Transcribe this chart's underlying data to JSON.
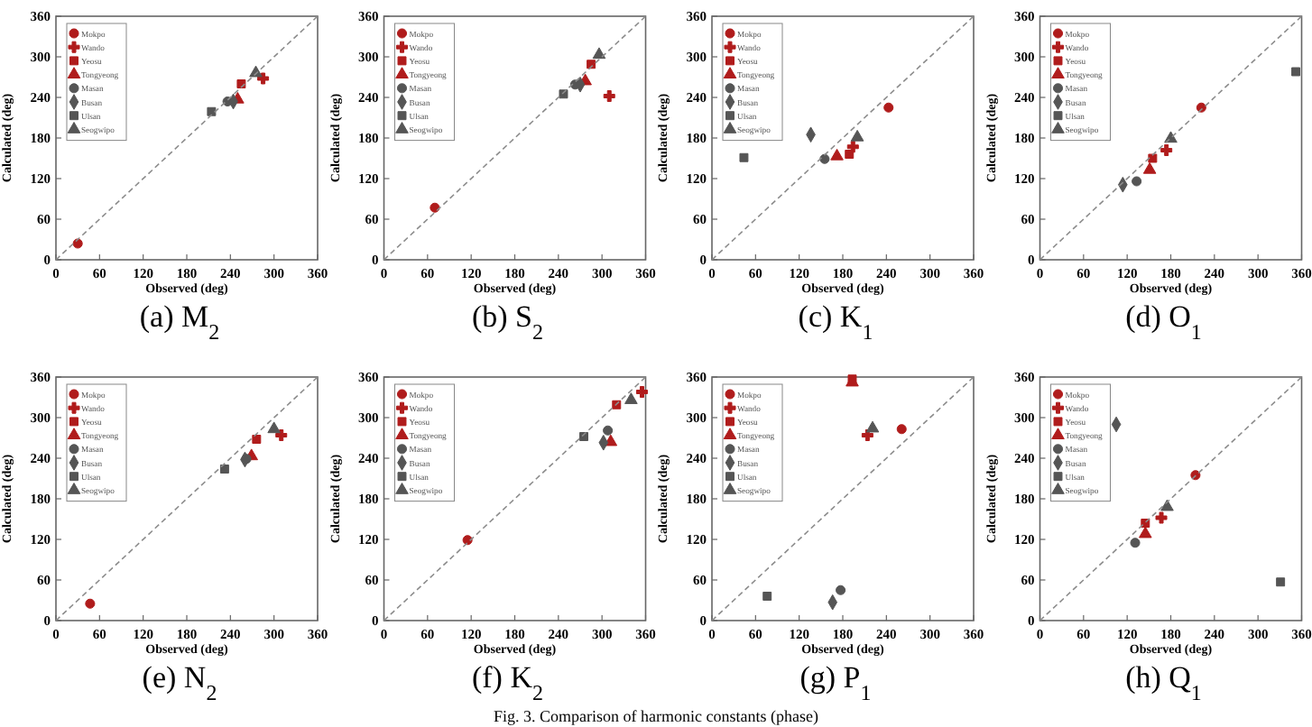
{
  "chart_data": [
    {
      "type": "scatter",
      "title": "(a) M$_{2}$",
      "xlabel": "Observed (deg)",
      "ylabel": "Calculated (deg)",
      "xlim": [
        0,
        360
      ],
      "ylim": [
        0,
        360
      ],
      "xticks": [
        0,
        60,
        120,
        180,
        240,
        300,
        360
      ],
      "yticks": [
        0,
        60,
        120,
        180,
        240,
        300,
        360
      ],
      "legend": "top left",
      "grid": false,
      "series": [
        {
          "name": "Mokpo",
          "color": "#b01c1c",
          "marker": "circle",
          "x": [
            30
          ],
          "values": [
            24
          ]
        },
        {
          "name": "Wando",
          "color": "#b01c1c",
          "marker": "cross",
          "x": [
            285
          ],
          "values": [
            268
          ]
        },
        {
          "name": "Yeosu",
          "color": "#b01c1c",
          "marker": "square",
          "x": [
            255
          ],
          "values": [
            260
          ]
        },
        {
          "name": "Tongyeong",
          "color": "#b01c1c",
          "marker": "triangle",
          "x": [
            250
          ],
          "values": [
            237
          ]
        },
        {
          "name": "Masan",
          "color": "#555555",
          "marker": "circle",
          "x": [
            236
          ],
          "values": [
            234
          ]
        },
        {
          "name": "Busan",
          "color": "#555555",
          "marker": "diamond",
          "x": [
            244
          ],
          "values": [
            234
          ]
        },
        {
          "name": "Ulsan",
          "color": "#555555",
          "marker": "square",
          "x": [
            214
          ],
          "values": [
            219
          ]
        },
        {
          "name": "Seogwipo",
          "color": "#555555",
          "marker": "triangle",
          "x": [
            275
          ],
          "values": [
            276
          ]
        },
        {
          "type": "line",
          "color": "#8c8c8c",
          "line_style": "dashed",
          "marker": "none",
          "x": [
            0,
            360
          ],
          "values": [
            0,
            360
          ]
        }
      ]
    },
    {
      "type": "scatter",
      "title": "(b) S$_{2}$",
      "xlabel": "Observed (deg)",
      "ylabel": "Calculated (deg)",
      "xlim": [
        0,
        360
      ],
      "ylim": [
        0,
        360
      ],
      "xticks": [
        0,
        60,
        120,
        180,
        240,
        300,
        360
      ],
      "yticks": [
        0,
        60,
        120,
        180,
        240,
        300,
        360
      ],
      "legend": "top left",
      "grid": false,
      "series": [
        {
          "name": "Mokpo",
          "color": "#b01c1c",
          "marker": "circle",
          "x": [
            70
          ],
          "values": [
            77
          ]
        },
        {
          "name": "Wando",
          "color": "#b01c1c",
          "marker": "cross",
          "x": [
            310
          ],
          "values": [
            242
          ]
        },
        {
          "name": "Yeosu",
          "color": "#b01c1c",
          "marker": "square",
          "x": [
            285
          ],
          "values": [
            289
          ]
        },
        {
          "name": "Tongyeong",
          "color": "#b01c1c",
          "marker": "triangle",
          "x": [
            277
          ],
          "values": [
            264
          ]
        },
        {
          "name": "Masan",
          "color": "#555555",
          "marker": "circle",
          "x": [
            263
          ],
          "values": [
            259
          ]
        },
        {
          "name": "Busan",
          "color": "#555555",
          "marker": "diamond",
          "x": [
            270
          ],
          "values": [
            259
          ]
        },
        {
          "name": "Ulsan",
          "color": "#555555",
          "marker": "square",
          "x": [
            247
          ],
          "values": [
            245
          ]
        },
        {
          "name": "Seogwipo",
          "color": "#555555",
          "marker": "triangle",
          "x": [
            296
          ],
          "values": [
            303
          ]
        },
        {
          "type": "line",
          "color": "#8c8c8c",
          "line_style": "dashed",
          "marker": "none",
          "x": [
            0,
            360
          ],
          "values": [
            0,
            360
          ]
        }
      ]
    },
    {
      "type": "scatter",
      "title": "(c) K$_{1}$",
      "xlabel": "Observed (deg)",
      "ylabel": "Calculated (deg)",
      "xlim": [
        0,
        360
      ],
      "ylim": [
        0,
        360
      ],
      "xticks": [
        0,
        60,
        120,
        180,
        240,
        300,
        360
      ],
      "yticks": [
        0,
        60,
        120,
        180,
        240,
        300,
        360
      ],
      "legend": "top left",
      "grid": false,
      "series": [
        {
          "name": "Mokpo",
          "color": "#b01c1c",
          "marker": "circle",
          "x": [
            243
          ],
          "values": [
            225
          ]
        },
        {
          "name": "Wando",
          "color": "#b01c1c",
          "marker": "cross",
          "x": [
            194
          ],
          "values": [
            167
          ]
        },
        {
          "name": "Yeosu",
          "color": "#b01c1c",
          "marker": "square",
          "x": [
            189
          ],
          "values": [
            156
          ]
        },
        {
          "name": "Tongyeong",
          "color": "#b01c1c",
          "marker": "triangle",
          "x": [
            172
          ],
          "values": [
            153
          ]
        },
        {
          "name": "Masan",
          "color": "#555555",
          "marker": "circle",
          "x": [
            155
          ],
          "values": [
            149
          ]
        },
        {
          "name": "Busan",
          "color": "#555555",
          "marker": "diamond",
          "x": [
            136
          ],
          "values": [
            185
          ]
        },
        {
          "name": "Ulsan",
          "color": "#555555",
          "marker": "square",
          "x": [
            44
          ],
          "values": [
            151
          ]
        },
        {
          "name": "Seogwipo",
          "color": "#555555",
          "marker": "triangle",
          "x": [
            200
          ],
          "values": [
            181
          ]
        },
        {
          "type": "line",
          "color": "#8c8c8c",
          "line_style": "dashed",
          "marker": "none",
          "x": [
            0,
            360
          ],
          "values": [
            0,
            360
          ]
        }
      ]
    },
    {
      "type": "scatter",
      "title": "(d) O$_{1}$",
      "xlabel": "Observed (deg)",
      "ylabel": "Calculated (deg)",
      "xlim": [
        0,
        360
      ],
      "ylim": [
        0,
        360
      ],
      "xticks": [
        0,
        60,
        120,
        180,
        240,
        300,
        360
      ],
      "yticks": [
        0,
        60,
        120,
        180,
        240,
        300,
        360
      ],
      "legend": "top left",
      "grid": false,
      "series": [
        {
          "name": "Mokpo",
          "color": "#b01c1c",
          "marker": "circle",
          "x": [
            222
          ],
          "values": [
            225
          ]
        },
        {
          "name": "Wando",
          "color": "#b01c1c",
          "marker": "cross",
          "x": [
            174
          ],
          "values": [
            162
          ]
        },
        {
          "name": "Yeosu",
          "color": "#b01c1c",
          "marker": "square",
          "x": [
            155
          ],
          "values": [
            150
          ]
        },
        {
          "name": "Tongyeong",
          "color": "#b01c1c",
          "marker": "triangle",
          "x": [
            151
          ],
          "values": [
            133
          ]
        },
        {
          "name": "Masan",
          "color": "#555555",
          "marker": "circle",
          "x": [
            133
          ],
          "values": [
            116
          ]
        },
        {
          "name": "Busan",
          "color": "#555555",
          "marker": "diamond",
          "x": [
            114
          ],
          "values": [
            111
          ]
        },
        {
          "name": "Ulsan",
          "color": "#555555",
          "marker": "square",
          "x": [
            352
          ],
          "values": [
            278
          ]
        },
        {
          "name": "Seogwipo",
          "color": "#555555",
          "marker": "triangle",
          "x": [
            180
          ],
          "values": [
            179
          ]
        },
        {
          "type": "line",
          "color": "#8c8c8c",
          "line_style": "dashed",
          "marker": "none",
          "x": [
            0,
            360
          ],
          "values": [
            0,
            360
          ]
        }
      ]
    },
    {
      "type": "scatter",
      "title": "(e) N$_{2}$",
      "xlabel": "Observed (deg)",
      "ylabel": "Calculated (deg)",
      "xlim": [
        0,
        360
      ],
      "ylim": [
        0,
        360
      ],
      "xticks": [
        0,
        60,
        120,
        180,
        240,
        300,
        360
      ],
      "yticks": [
        0,
        60,
        120,
        180,
        240,
        300,
        360
      ],
      "legend": "top left",
      "grid": false,
      "series": [
        {
          "name": "Mokpo",
          "color": "#b01c1c",
          "marker": "circle",
          "x": [
            47
          ],
          "values": [
            25
          ]
        },
        {
          "name": "Wando",
          "color": "#b01c1c",
          "marker": "cross",
          "x": [
            310
          ],
          "values": [
            274
          ]
        },
        {
          "name": "Yeosu",
          "color": "#b01c1c",
          "marker": "square",
          "x": [
            276
          ],
          "values": [
            268
          ]
        },
        {
          "name": "Tongyeong",
          "color": "#b01c1c",
          "marker": "triangle",
          "x": [
            269
          ],
          "values": [
            243
          ]
        },
        {
          "name": "Masan",
          "color": "#555555",
          "marker": "circle",
          "x": [
            262
          ],
          "values": [
            239
          ]
        },
        {
          "name": "Busan",
          "color": "#555555",
          "marker": "diamond",
          "x": [
            260
          ],
          "values": [
            238
          ]
        },
        {
          "name": "Ulsan",
          "color": "#555555",
          "marker": "square",
          "x": [
            232
          ],
          "values": [
            224
          ]
        },
        {
          "name": "Seogwipo",
          "color": "#555555",
          "marker": "triangle",
          "x": [
            300
          ],
          "values": [
            283
          ]
        },
        {
          "type": "line",
          "color": "#8c8c8c",
          "line_style": "dashed",
          "marker": "none",
          "x": [
            0,
            360
          ],
          "values": [
            0,
            360
          ]
        }
      ]
    },
    {
      "type": "scatter",
      "title": "(f) K$_{2}$",
      "xlabel": "Observed (deg)",
      "ylabel": "Calculated (deg)",
      "xlim": [
        0,
        360
      ],
      "ylim": [
        0,
        360
      ],
      "xticks": [
        0,
        60,
        120,
        180,
        240,
        300,
        360
      ],
      "yticks": [
        0,
        60,
        120,
        180,
        240,
        300,
        360
      ],
      "legend": "top left",
      "grid": false,
      "series": [
        {
          "name": "Mokpo",
          "color": "#b01c1c",
          "marker": "circle",
          "x": [
            115
          ],
          "values": [
            119
          ]
        },
        {
          "name": "Wando",
          "color": "#b01c1c",
          "marker": "cross",
          "x": [
            355
          ],
          "values": [
            338
          ]
        },
        {
          "name": "Yeosu",
          "color": "#b01c1c",
          "marker": "square",
          "x": [
            320
          ],
          "values": [
            319
          ]
        },
        {
          "name": "Tongyeong",
          "color": "#b01c1c",
          "marker": "triangle",
          "x": [
            312
          ],
          "values": [
            264
          ]
        },
        {
          "name": "Masan",
          "color": "#555555",
          "marker": "circle",
          "x": [
            308
          ],
          "values": [
            281
          ]
        },
        {
          "name": "Busan",
          "color": "#555555",
          "marker": "diamond",
          "x": [
            302
          ],
          "values": [
            263
          ]
        },
        {
          "name": "Ulsan",
          "color": "#555555",
          "marker": "square",
          "x": [
            275
          ],
          "values": [
            272
          ]
        },
        {
          "name": "Seogwipo",
          "color": "#555555",
          "marker": "triangle",
          "x": [
            340
          ],
          "values": [
            326
          ]
        },
        {
          "type": "line",
          "color": "#8c8c8c",
          "line_style": "dashed",
          "marker": "none",
          "x": [
            0,
            360
          ],
          "values": [
            0,
            360
          ]
        }
      ]
    },
    {
      "type": "scatter",
      "title": "(g) P$_{1}$",
      "xlabel": "Observed (deg)",
      "ylabel": "Calculated (deg)",
      "xlim": [
        0,
        360
      ],
      "ylim": [
        0,
        360
      ],
      "xticks": [
        0,
        60,
        120,
        180,
        240,
        300,
        360
      ],
      "yticks": [
        0,
        60,
        120,
        180,
        240,
        300,
        360
      ],
      "legend": "top left",
      "grid": false,
      "series": [
        {
          "name": "Mokpo",
          "color": "#b01c1c",
          "marker": "circle",
          "x": [
            261
          ],
          "values": [
            283
          ]
        },
        {
          "name": "Wando",
          "color": "#b01c1c",
          "marker": "cross",
          "x": [
            214
          ],
          "values": [
            274
          ]
        },
        {
          "name": "Yeosu",
          "color": "#b01c1c",
          "marker": "square",
          "x": [
            193
          ],
          "values": [
            357
          ]
        },
        {
          "name": "Tongyeong",
          "color": "#b01c1c",
          "marker": "triangle",
          "x": [
            193
          ],
          "values": [
            352
          ]
        },
        {
          "name": "Masan",
          "color": "#555555",
          "marker": "circle",
          "x": [
            177
          ],
          "values": [
            45
          ]
        },
        {
          "name": "Busan",
          "color": "#555555",
          "marker": "diamond",
          "x": [
            166
          ],
          "values": [
            27
          ]
        },
        {
          "name": "Ulsan",
          "color": "#555555",
          "marker": "square",
          "x": [
            76
          ],
          "values": [
            36
          ]
        },
        {
          "name": "Seogwipo",
          "color": "#555555",
          "marker": "triangle",
          "x": [
            221
          ],
          "values": [
            284
          ]
        },
        {
          "type": "line",
          "color": "#8c8c8c",
          "line_style": "dashed",
          "marker": "none",
          "x": [
            0,
            360
          ],
          "values": [
            0,
            360
          ]
        }
      ]
    },
    {
      "type": "scatter",
      "title": "(h) Q$_{1}$",
      "xlabel": "Observed (deg)",
      "ylabel": "Calculated (deg)",
      "xlim": [
        0,
        360
      ],
      "ylim": [
        0,
        360
      ],
      "xticks": [
        0,
        60,
        120,
        180,
        240,
        300,
        360
      ],
      "yticks": [
        0,
        60,
        120,
        180,
        240,
        300,
        360
      ],
      "legend": "top left",
      "grid": false,
      "annotations": [
        "Fig. 3. Comparison of harmonic constants (phase)"
      ],
      "series": [
        {
          "name": "Mokpo",
          "color": "#b01c1c",
          "marker": "circle",
          "x": [
            214
          ],
          "values": [
            215
          ]
        },
        {
          "name": "Wando",
          "color": "#b01c1c",
          "marker": "cross",
          "x": [
            167
          ],
          "values": [
            152
          ]
        },
        {
          "name": "Yeosu",
          "color": "#b01c1c",
          "marker": "square",
          "x": [
            145
          ],
          "values": [
            144
          ]
        },
        {
          "name": "Tongyeong",
          "color": "#b01c1c",
          "marker": "triangle",
          "x": [
            145
          ],
          "values": [
            128
          ]
        },
        {
          "name": "Masan",
          "color": "#555555",
          "marker": "circle",
          "x": [
            131
          ],
          "values": [
            115
          ]
        },
        {
          "name": "Busan",
          "color": "#555555",
          "marker": "diamond",
          "x": [
            105
          ],
          "values": [
            290
          ]
        },
        {
          "name": "Ulsan",
          "color": "#555555",
          "marker": "square",
          "x": [
            331
          ],
          "values": [
            57
          ]
        },
        {
          "name": "Seogwipo",
          "color": "#555555",
          "marker": "triangle",
          "x": [
            175
          ],
          "values": [
            168
          ]
        },
        {
          "type": "line",
          "color": "#8c8c8c",
          "line_style": "dashed",
          "marker": "none",
          "x": [
            0,
            360
          ],
          "values": [
            0,
            360
          ]
        }
      ]
    }
  ]
}
